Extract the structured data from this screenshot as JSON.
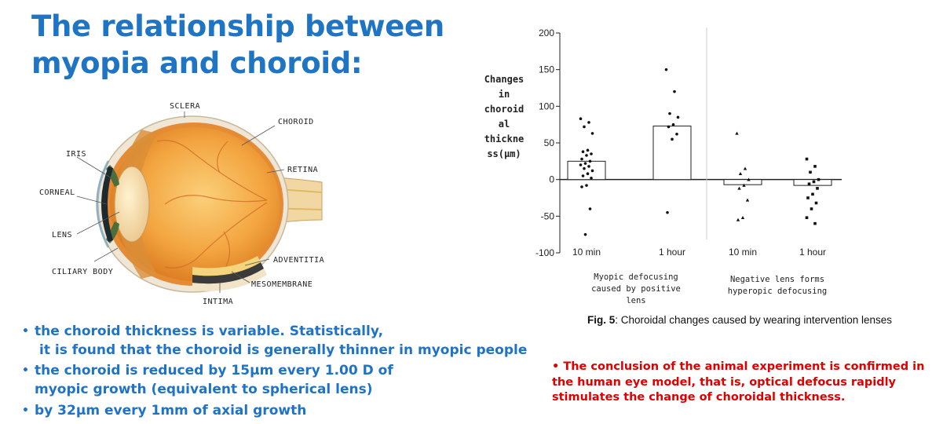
{
  "slide": {
    "title_line1": "The relationship between",
    "title_line2": "myopia and choroid:"
  },
  "eye_diagram": {
    "labels": {
      "sclera": "SCLERA",
      "choroid": "CHOROID",
      "iris": "IRIS",
      "retina": "RETINA",
      "corneal": "CORNEAL",
      "lens": "LENS",
      "ciliary_body": "CILIARY BODY",
      "adventitia": "ADVENTITIA",
      "mesomembrane": "MESOMEMBRANE",
      "intima": "INTIMA"
    }
  },
  "bullets": [
    {
      "dot": "•",
      "line1": "the choroid thickness is variable. Statistically,",
      "line2": " it is found that the choroid is generally thinner in myopic people"
    },
    {
      "dot": "•",
      "line1": "the choroid is reduced by 15μm every 1.00 D of",
      "line2": "myopic growth (equivalent to spherical lens)"
    },
    {
      "dot": "•",
      "line1": "by 32μm every 1mm of axial growth"
    }
  ],
  "chart_data": {
    "type": "bar",
    "ylabel_lines": [
      "Changes",
      "in",
      "choroid",
      "al",
      "thickne",
      "ss(μm)"
    ],
    "ylim": [
      -100,
      200
    ],
    "yticks": [
      {
        "value": 200,
        "label": "200"
      },
      {
        "value": 150,
        "label": "150"
      },
      {
        "value": 100,
        "label": "100"
      },
      {
        "value": 50,
        "label": "50"
      },
      {
        "value": 0,
        "label": "0"
      },
      {
        "value": -50,
        "label": "-50"
      },
      {
        "value": -100,
        "label": "-100"
      }
    ],
    "categories": [
      "10 min",
      "1 hour",
      "10 min",
      "1 hour"
    ],
    "values": [
      25,
      73,
      -7,
      -8
    ],
    "groups": [
      {
        "lines": [
          "Myopic defocusing",
          "caused by positive",
          "lens"
        ]
      },
      {
        "lines": [
          "Negative lens forms",
          "hyperopic defocusing"
        ]
      }
    ],
    "points": [
      {
        "cat": 0,
        "shape": "circle",
        "y": [
          83,
          78,
          72,
          63,
          40,
          38,
          35,
          33,
          28,
          25,
          22,
          20,
          18,
          15,
          12,
          8,
          5,
          2,
          -8,
          -10,
          -40,
          -75
        ]
      },
      {
        "cat": 1,
        "shape": "circle",
        "y": [
          150,
          120,
          90,
          85,
          75,
          72,
          62,
          55,
          -45
        ]
      },
      {
        "cat": 2,
        "shape": "triangle",
        "y": [
          63,
          15,
          8,
          0,
          -8,
          -12,
          -28,
          -52,
          -55
        ]
      },
      {
        "cat": 3,
        "shape": "square",
        "y": [
          28,
          18,
          10,
          0,
          -3,
          -6,
          -12,
          -20,
          -25,
          -32,
          -40,
          -52,
          -60
        ]
      }
    ],
    "caption_bold": "Fig. 5",
    "caption_rest": ": Choroidal changes caused by wearing intervention lenses"
  },
  "conclusion": {
    "line1": "• The conclusion of the animal experiment is confirmed in",
    "line2": "the human eye model, that is, optical defocus rapidly",
    "line3": "stimulates the change of choroidal thickness."
  },
  "colors": {
    "title": "#1f75c4",
    "bullets": "#1e73c7",
    "conclusion": "#e00000"
  }
}
